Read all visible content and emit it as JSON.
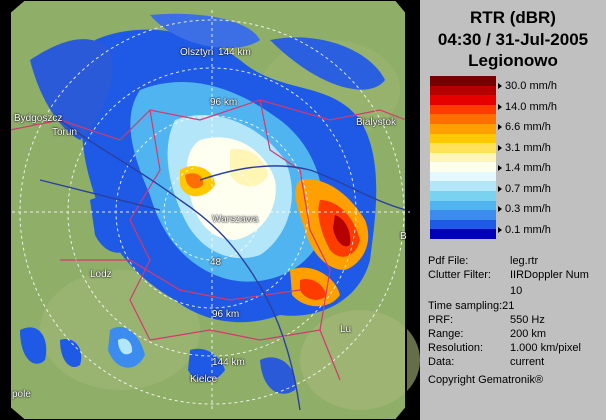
{
  "header": {
    "product": "RTR (dBR)",
    "datetime": "04:30 / 31-Jul-2005",
    "site": "Legionowo"
  },
  "legend": {
    "items": [
      {
        "label": "30.0 mm/h",
        "color": "#b40000"
      },
      {
        "label": "14.0 mm/h",
        "color": "#ff3c00"
      },
      {
        "label": "6.6 mm/h",
        "color": "#ffa000"
      },
      {
        "label": "3.1 mm/h",
        "color": "#ffe15a"
      },
      {
        "label": "1.4 mm/h",
        "color": "#fffff0"
      },
      {
        "label": "0.7 mm/h",
        "color": "#78d2f0"
      },
      {
        "label": "0.3 mm/h",
        "color": "#3c8cf0"
      },
      {
        "label": "0.1 mm/h",
        "color": "#0000b4"
      }
    ],
    "colors": [
      "#780000",
      "#b40000",
      "#e60000",
      "#ff3c00",
      "#ff6e00",
      "#ffa000",
      "#ffc800",
      "#ffe15a",
      "#fff5b4",
      "#fffff0",
      "#e6f8ff",
      "#b4e6fa",
      "#78d2f0",
      "#50b4f0",
      "#3c8cf0",
      "#1e5ae6",
      "#0000b4"
    ]
  },
  "info": {
    "pdf_file": {
      "label": "Pdf File:",
      "value": "leg.rtr"
    },
    "clutter_filter": {
      "label": "Clutter Filter:",
      "value": "IIRDoppler Num",
      "value2": "10"
    },
    "time_sampling": {
      "label": "Time sampling:",
      "value": "21"
    },
    "prf": {
      "label": "PRF:",
      "value": "550 Hz"
    },
    "range": {
      "label": "Range:",
      "value": "200 km"
    },
    "resolution": {
      "label": "Resolution:",
      "value": "1.000 km/pixel"
    },
    "data": {
      "label": "Data:",
      "value": "current"
    },
    "copyright": "Copyright Gematronik®"
  },
  "map": {
    "cities": {
      "olsztyn": "Olsztyn",
      "bydgoszcz": "Bydgoszcz",
      "torun": "Torun",
      "bialystok": "Bialystok",
      "warszawa": "Warszawa",
      "lodz": "Lodz",
      "kielce": "Kielce",
      "opole": "pole",
      "lublin": "Lu",
      "b_east": "B"
    },
    "rings": {
      "r144n": "144 km",
      "r96n": "96 km",
      "r48": "48",
      "r96s": "96 km",
      "r144s": "144 km"
    },
    "colors": {
      "land": "#8fae68",
      "frame": "#000000",
      "ring": "#ffffff",
      "border": "#d23a6e",
      "river": "#2b3fa0"
    }
  }
}
